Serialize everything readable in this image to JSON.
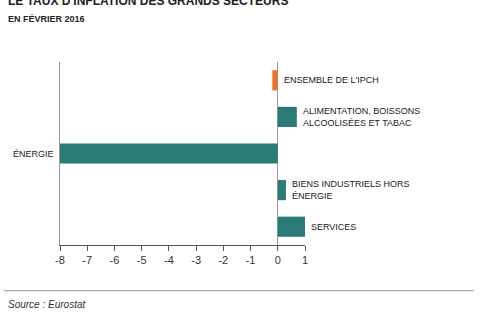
{
  "chart_data": {
    "type": "bar",
    "orientation": "horizontal",
    "title": "LE TAUX D'INFLATION DES GRANDS SECTEURS",
    "subtitle": "EN FÉVRIER 2016",
    "source": "Source : Eurostat",
    "categories": [
      "ENSEMBLE DE L'IPCH",
      "ALIMENTATION, BOISSONS ALCOOLISÉES ET TABAC",
      "ÉNERGIE",
      "BIENS INDUSTRIELS HORS ÉNERGIE",
      "SERVICES"
    ],
    "values": [
      -0.2,
      0.7,
      -8.0,
      0.3,
      1.0
    ],
    "colors": [
      "#e8732a",
      "#2a7a78",
      "#2a7a78",
      "#2a7a78",
      "#2a7a78"
    ],
    "xlim": [
      -8,
      1
    ],
    "xticks": [
      -8,
      -7,
      -6,
      -5,
      -4,
      -3,
      -2,
      -1,
      0,
      1
    ],
    "grid": false,
    "tick_labels": "x"
  }
}
